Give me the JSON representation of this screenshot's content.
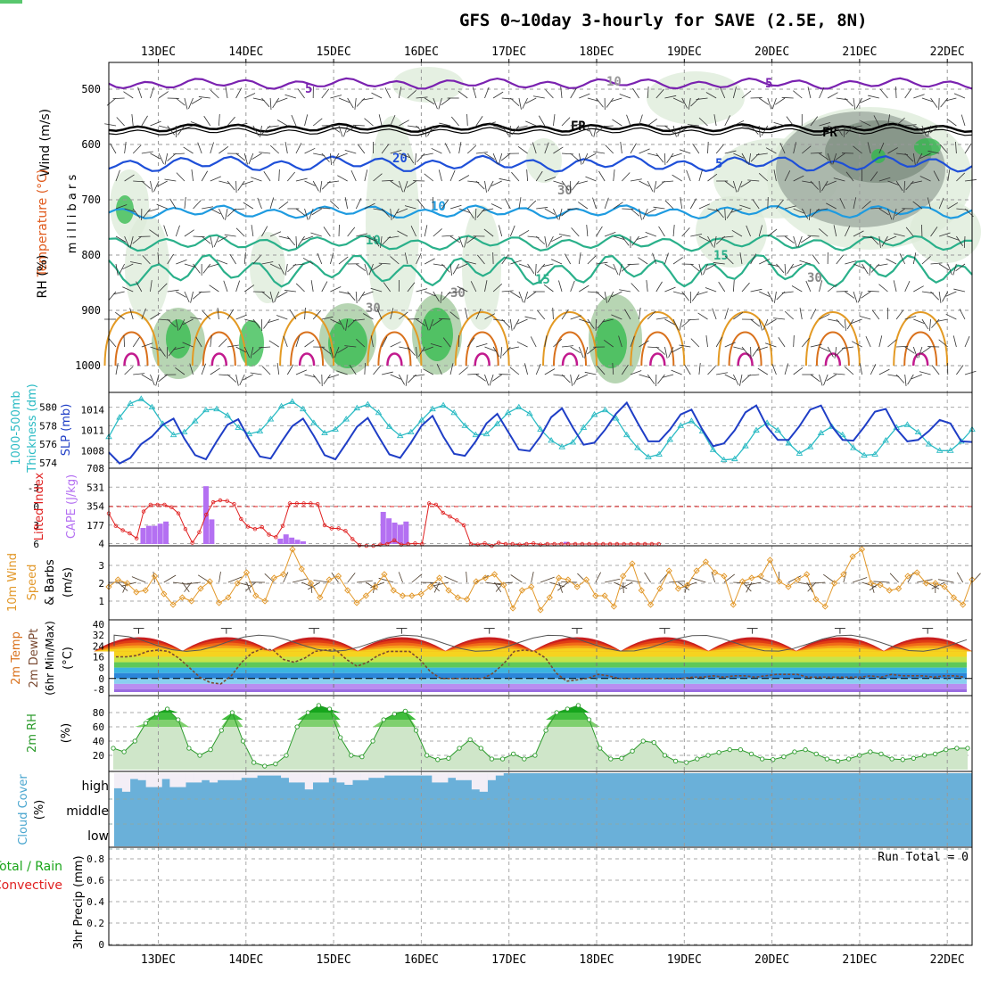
{
  "title": "GFS 0~10day 3-hourly for SAVE (2.5E, 8N)",
  "dates": [
    "13DEC",
    "14DEC",
    "15DEC",
    "16DEC",
    "17DEC",
    "18DEC",
    "19DEC",
    "20DEC",
    "21DEC",
    "22DEC"
  ],
  "colors": {
    "temp_line": "#2ab08a",
    "temp_warm": "#e39a24",
    "temp_hot": "#d9711c",
    "temp_vhot": "#c21a8e",
    "freeze_line": "#000000",
    "minus5": "#7a22b0",
    "plus5": "#1e4fd8",
    "plus10": "#1e9be0",
    "rh_light": "#dcebd8",
    "rh_mid": "#9fc79a",
    "rh_dark": "#2fb94a",
    "rh_grey": "#9aa79c",
    "thickness": "#2bbbc4",
    "slp": "#1f3ec6",
    "cape": "#b470f2",
    "li": "#e02020",
    "wind": "#e2982a",
    "barb": "#4a3a2a",
    "dewpt": "#7a4a32",
    "rh2m": "#2a9a2a",
    "cloud": "#6ab0d9",
    "high_gap": "#f3eef6"
  },
  "chart_data": [
    {
      "panel": "upper-air",
      "type": "contour",
      "title": "",
      "ylabel": "millibars",
      "side_labels": {
        "wind": "Wind (m/s)",
        "temperature": "Temperature (°C)",
        "rh": "RH (%)"
      },
      "y_ticks": [
        500,
        600,
        700,
        800,
        900,
        1000
      ],
      "ylim": [
        1000,
        450
      ],
      "contour_labels": [
        "5",
        "10",
        "FR",
        "FR",
        "10",
        "5",
        "5",
        "10",
        "15",
        "15",
        "20",
        "30",
        "30",
        "30",
        "30"
      ],
      "isotherms": [
        {
          "label": "-5",
          "level_mb": 490
        },
        {
          "label": "0 (FR)",
          "level_mb": 570
        },
        {
          "label": "5",
          "level_mb": 630
        },
        {
          "label": "10",
          "level_mb": 720
        },
        {
          "label": "15",
          "level_mb": 775
        },
        {
          "label": "20",
          "level_mb": 825
        }
      ]
    },
    {
      "panel": "thickness-slp",
      "type": "line",
      "left_label": "1000-500mb Thickness (dm)",
      "right_label": "SLP (mb)",
      "left_ticks": [
        574,
        576,
        578,
        580
      ],
      "right_ticks": [
        1008,
        1011,
        1014
      ],
      "thickness_dm": [
        576.8,
        578.9,
        580.4,
        580.9,
        580.0,
        578.2,
        577.0,
        577.3,
        578.5,
        579.7,
        579.8,
        579.1,
        577.8,
        577.1,
        577.4,
        578.7,
        580.1,
        580.6,
        579.8,
        578.3,
        577.2,
        577.6,
        578.7,
        579.9,
        580.3,
        579.4,
        577.9,
        576.9,
        577.3,
        578.6,
        579.8,
        580.2,
        579.4,
        578.0,
        577.0,
        577.1,
        578.2,
        579.4,
        580.0,
        579.3,
        577.6,
        576.4,
        575.7,
        576.2,
        577.8,
        579.2,
        579.7,
        578.8,
        577.0,
        575.6,
        574.6,
        574.9,
        576.5,
        578.0,
        578.5,
        577.4,
        575.4,
        574.3,
        574.4,
        575.8,
        577.5,
        578.3,
        577.5,
        576.1,
        575.0,
        575.7,
        577.2,
        577.9,
        577.0,
        575.6,
        574.8,
        574.9,
        576.4,
        577.8,
        578.1,
        577.3,
        576.0,
        575.3,
        575.3,
        576.3,
        577.6
      ],
      "slp_mb": [
        1007.8,
        1006.2,
        1007.0,
        1009.0,
        1010.1,
        1011.8,
        1012.7,
        1009.8,
        1007.4,
        1006.8,
        1009.4,
        1011.8,
        1012.6,
        1009.7,
        1007.2,
        1006.9,
        1009.3,
        1011.6,
        1012.7,
        1010.2,
        1007.4,
        1006.8,
        1009.1,
        1011.5,
        1012.8,
        1010.1,
        1007.5,
        1007.0,
        1009.2,
        1011.7,
        1013.1,
        1010.1,
        1007.6,
        1007.3,
        1009.4,
        1012.0,
        1013.4,
        1010.8,
        1008.2,
        1008.0,
        1010.1,
        1012.9,
        1014.2,
        1011.4,
        1008.9,
        1009.2,
        1011.1,
        1013.4,
        1015.0,
        1012.1,
        1009.4,
        1009.4,
        1011.1,
        1013.3,
        1014.0,
        1011.1,
        1008.7,
        1009.1,
        1011.0,
        1013.6,
        1014.6,
        1011.5,
        1009.6,
        1009.6,
        1011.6,
        1014.0,
        1014.6,
        1011.6,
        1009.6,
        1009.5,
        1011.5,
        1013.7,
        1014.1,
        1011.2,
        1009.4,
        1009.6,
        1010.9,
        1012.5,
        1012.0,
        1009.4,
        1009.3
      ]
    },
    {
      "panel": "cape-li",
      "type": "bar",
      "left_label": "Lifted Index",
      "right_label": "CAPE (J/kg)",
      "li_ticks": [
        "-3",
        "0",
        "3",
        "6"
      ],
      "cape_ticks": [
        "708",
        "531",
        "354",
        "177",
        "4"
      ],
      "cape_Jkg": [
        0,
        0,
        0,
        0,
        0,
        0,
        150,
        170,
        170,
        190,
        210,
        0,
        0,
        0,
        0,
        0,
        0,
        540,
        230,
        0,
        0,
        0,
        0,
        0,
        0,
        0,
        0,
        0,
        0,
        0,
        50,
        90,
        60,
        40,
        25,
        0,
        0,
        0,
        0,
        0,
        0,
        0,
        0,
        0,
        0,
        0,
        0,
        0,
        300,
        240,
        200,
        180,
        210,
        0,
        0,
        0,
        0,
        0,
        0,
        0,
        0,
        0,
        0,
        0,
        0,
        0,
        0,
        0,
        0,
        0,
        0,
        0,
        0,
        0,
        0,
        0,
        0,
        0,
        0,
        0,
        20,
        0,
        0,
        0,
        0,
        0,
        0,
        0,
        0,
        0,
        0,
        0,
        0,
        0,
        0,
        0,
        0,
        0,
        0,
        0,
        0,
        0,
        0,
        0,
        0,
        0,
        0,
        0,
        0,
        0,
        0,
        0,
        0,
        0,
        0,
        0,
        0,
        0,
        0,
        0,
        0,
        0,
        0,
        0,
        0,
        0,
        0,
        0,
        0,
        0,
        0,
        0,
        0,
        0,
        0,
        0,
        0,
        0,
        0,
        0,
        0,
        0,
        0,
        0,
        0,
        0,
        0,
        0,
        0,
        0,
        0,
        0
      ],
      "li_points": [
        1.1,
        3.1,
        3.8,
        4.3,
        5.1,
        0.8,
        -0.3,
        -0.3,
        -0.3,
        0.1,
        1.1,
        3.6,
        5.8,
        4.1,
        1.3,
        -0.7,
        -1.0,
        -0.9,
        -0.4,
        2.0,
        3.2,
        3.6,
        3.3,
        4.5,
        4.9,
        3.1,
        -0.5,
        -0.5,
        -0.5,
        -0.5,
        -0.4,
        3.0,
        3.5,
        3.5,
        3.9,
        5.2,
        6.2,
        6.4,
        6.5,
        6.1,
        6.0,
        5.4,
        6.1,
        6.0,
        5.9,
        6.0,
        -0.5,
        -0.3,
        1.0,
        1.6,
        2.2,
        3.0,
        6.0,
        6.1,
        5.9,
        6.3,
        5.8,
        6.0,
        6.0,
        6.1,
        6.0,
        5.9,
        6.1,
        6.0,
        6.0,
        6.0,
        6.0,
        6.0,
        6.0,
        6.0,
        6.0,
        6.0,
        6.0,
        6.0,
        6.0,
        6.0,
        6.0,
        6.0,
        6.0,
        6.0
      ]
    },
    {
      "panel": "wind10m",
      "type": "line",
      "left_label": "10m Wind Speed & Barbs (m/s)",
      "y_ticks": [
        1,
        2,
        3
      ],
      "values_ms": [
        1.8,
        2.2,
        2.0,
        1.5,
        1.6,
        2.4,
        1.4,
        0.8,
        1.2,
        1.0,
        1.7,
        2.1,
        0.9,
        1.2,
        2.0,
        2.6,
        1.3,
        1.0,
        2.3,
        2.5,
        3.9,
        2.8,
        2.0,
        1.2,
        2.2,
        2.4,
        1.6,
        0.9,
        1.3,
        1.8,
        2.5,
        1.6,
        1.3,
        1.3,
        1.4,
        1.8,
        2.3,
        1.6,
        1.2,
        1.1,
        2.1,
        2.3,
        2.5,
        1.9,
        0.6,
        1.6,
        1.8,
        0.5,
        1.2,
        2.3,
        2.2,
        1.8,
        2.2,
        1.3,
        1.3,
        0.7,
        2.4,
        3.1,
        1.6,
        0.8,
        1.7,
        2.7,
        1.7,
        1.9,
        2.7,
        3.2,
        2.6,
        2.4,
        0.8,
        2.1,
        2.3,
        2.4,
        3.3,
        2.1,
        1.8,
        2.2,
        2.5,
        1.1,
        0.7,
        2.0,
        2.5,
        3.5,
        3.9,
        2.0,
        1.9,
        1.6,
        1.7,
        2.4,
        2.6,
        2.0,
        2.0,
        1.8,
        1.2,
        0.8,
        2.2
      ],
      "barb_every": 1
    },
    {
      "panel": "temp2m",
      "type": "area",
      "left_label": "2m Temp 2m DewPt (6hr Min/Max) (°C)",
      "y_ticks": [
        "40",
        "32",
        "24",
        "16",
        "8",
        "0",
        "-8"
      ],
      "daily_max_c": [
        37,
        37,
        37,
        37,
        37,
        37,
        37,
        37,
        37,
        37
      ],
      "daily_min_c": [
        24,
        24,
        24,
        24,
        24,
        24,
        24,
        24,
        24,
        24
      ],
      "dewpt_c": [
        16,
        16,
        17,
        20,
        21,
        20,
        15,
        8,
        1,
        -3,
        -4,
        2,
        12,
        19,
        22,
        21,
        14,
        12,
        15,
        20,
        21,
        21,
        14,
        9,
        12,
        17,
        20,
        20,
        20,
        14,
        5,
        0,
        0,
        0,
        0,
        0,
        4,
        11,
        20,
        21,
        20,
        15,
        4,
        -2,
        -1,
        0,
        3,
        2,
        0,
        0,
        0,
        0,
        0,
        0,
        0,
        1,
        1,
        2,
        1,
        2,
        2,
        1,
        2,
        3,
        3,
        3,
        1,
        1,
        1,
        1,
        1,
        1,
        2,
        1,
        3,
        2,
        2,
        2,
        1,
        2,
        2,
        1
      ]
    },
    {
      "panel": "rh2m",
      "type": "area",
      "left_label": "2m RH (%)",
      "y_ticks": [
        20,
        40,
        60,
        80
      ],
      "values_pct": [
        30,
        25,
        40,
        65,
        78,
        85,
        70,
        30,
        20,
        28,
        55,
        80,
        40,
        10,
        5,
        8,
        20,
        60,
        80,
        90,
        85,
        45,
        20,
        18,
        40,
        70,
        78,
        82,
        55,
        20,
        14,
        16,
        30,
        42,
        30,
        15,
        15,
        22,
        15,
        20,
        55,
        80,
        85,
        90,
        70,
        30,
        15,
        16,
        26,
        40,
        38,
        20,
        12,
        10,
        15,
        20,
        24,
        28,
        28,
        22,
        15,
        14,
        18,
        25,
        28,
        22,
        15,
        12,
        15,
        20,
        25,
        22,
        15,
        14,
        16,
        20,
        22,
        28,
        30,
        30
      ]
    },
    {
      "panel": "cloud",
      "type": "heatmap",
      "left_label": "Cloud Cover (%)",
      "levels": [
        "high",
        "middle",
        "low"
      ],
      "high_cover_pct": [
        35,
        20,
        75,
        70,
        40,
        40,
        75,
        40,
        40,
        60,
        60,
        70,
        60,
        70,
        70,
        70,
        80,
        80,
        90,
        90,
        90,
        80,
        60,
        60,
        30,
        60,
        60,
        80,
        60,
        50,
        70,
        70,
        80,
        80,
        90,
        90,
        90,
        90,
        90,
        90,
        60,
        60,
        80,
        70,
        70,
        30,
        20,
        70,
        90,
        100,
        100,
        100,
        100,
        100,
        100,
        100,
        100,
        100,
        100,
        100,
        100,
        100,
        100,
        100,
        100,
        100,
        100,
        100,
        100,
        100,
        100,
        100,
        100,
        100,
        100,
        100,
        100,
        100,
        100,
        100,
        100,
        100,
        100,
        100,
        100,
        100,
        100,
        100,
        100,
        100,
        100,
        100,
        100,
        100,
        100,
        100,
        100,
        100,
        100,
        100,
        100,
        100,
        100,
        100,
        100,
        100,
        100,
        100
      ]
    },
    {
      "panel": "precip",
      "type": "bar",
      "left_label": "3hr Precip (mm)",
      "legend_left": "Total / Rain",
      "legend_left2": "Convective",
      "run_total": "Run Total = 0",
      "y_ticks": [
        "0.8",
        "0.6",
        "0.4",
        "0.2",
        "0"
      ],
      "ylim": [
        0,
        0.9
      ],
      "values_mm": []
    }
  ]
}
